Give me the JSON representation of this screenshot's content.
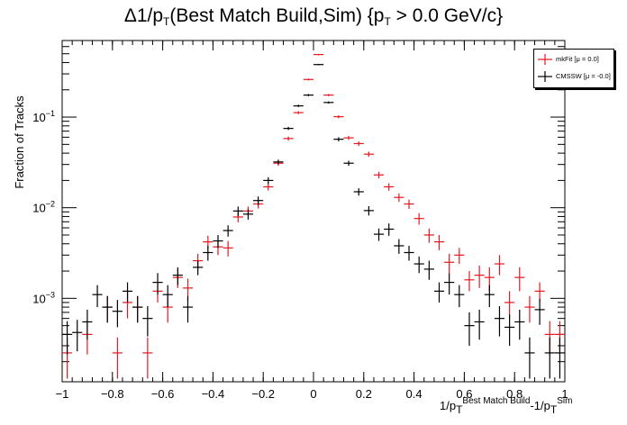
{
  "title": {
    "prefix": "Δ1/p",
    "sub1": "T",
    "mid": "(Best Match Build,Sim) {p",
    "sub2": "T",
    "suffix": " > 0.0 GeV/c}"
  },
  "axes": {
    "ylabel": "Fraction of Tracks",
    "xlabel": {
      "a": "1/p",
      "a_sub": "T",
      "a_sup": "Best Match Build",
      "b": "-1/p",
      "b_sub": "T",
      "b_sup": "Sim"
    }
  },
  "legend": {
    "entries": [
      {
        "label": "mkFit  [μ = 0.0]",
        "color": "#e8171e"
      },
      {
        "label": "CMSSW  [μ = -0.0]",
        "color": "#000000"
      }
    ]
  },
  "chart_data": {
    "type": "scatter",
    "xlim": [
      -1,
      1
    ],
    "ylim": [
      0.00012,
      0.7
    ],
    "yscale": "log",
    "grid": false,
    "legend_position": "top-right",
    "bin_width": 0.04,
    "x_ticks": [
      "−1",
      "−0.8",
      "−0.6",
      "−0.4",
      "−0.2",
      "0",
      "0.2",
      "0.4",
      "0.6",
      "0.8",
      "1"
    ],
    "x_tick_values": [
      -1,
      -0.8,
      -0.6,
      -0.4,
      -0.2,
      0,
      0.2,
      0.4,
      0.6,
      0.8,
      1
    ],
    "y_ticks": [
      {
        "value": 0.001,
        "base": "10",
        "exp": "−3"
      },
      {
        "value": 0.01,
        "base": "10",
        "exp": "−2"
      },
      {
        "value": 0.1,
        "base": "10",
        "exp": "−1"
      }
    ],
    "series": [
      {
        "name": "mkFit  [μ = 0.0]",
        "color": "#e8171e",
        "points": [
          {
            "x": -0.98,
            "y": 0.00025,
            "err": 0.00012
          },
          {
            "x": -0.9,
            "y": 0.0004,
            "err": 0.00016
          },
          {
            "x": -0.82,
            "y": 0.0008,
            "err": 0.00026
          },
          {
            "x": -0.78,
            "y": 0.00025,
            "err": 0.00012
          },
          {
            "x": -0.74,
            "y": 0.0009,
            "err": 0.0003
          },
          {
            "x": -0.7,
            "y": 0.0008,
            "err": 0.00026
          },
          {
            "x": -0.66,
            "y": 0.00025,
            "err": 0.00012
          },
          {
            "x": -0.62,
            "y": 0.0012,
            "err": 0.0003
          },
          {
            "x": -0.58,
            "y": 0.0008,
            "err": 0.00026
          },
          {
            "x": -0.54,
            "y": 0.0017,
            "err": 0.0004
          },
          {
            "x": -0.5,
            "y": 0.0013,
            "err": 0.00035
          },
          {
            "x": -0.46,
            "y": 0.0026,
            "err": 0.0005
          },
          {
            "x": -0.42,
            "y": 0.0042,
            "err": 0.0007
          },
          {
            "x": -0.38,
            "y": 0.0037,
            "err": 0.0007
          },
          {
            "x": -0.34,
            "y": 0.0036,
            "err": 0.0007
          },
          {
            "x": -0.3,
            "y": 0.0079,
            "err": 0.001
          },
          {
            "x": -0.26,
            "y": 0.0092,
            "err": 0.0011
          },
          {
            "x": -0.22,
            "y": 0.011,
            "err": 0.0012
          },
          {
            "x": -0.18,
            "y": 0.017,
            "err": 0.0015
          },
          {
            "x": -0.14,
            "y": 0.031,
            "err": 0.002
          },
          {
            "x": -0.1,
            "y": 0.058,
            "err": 0.003
          },
          {
            "x": -0.06,
            "y": 0.112,
            "err": 0.004
          },
          {
            "x": -0.02,
            "y": 0.26,
            "err": 0.006
          },
          {
            "x": 0.02,
            "y": 0.49,
            "err": 0.008
          },
          {
            "x": 0.06,
            "y": 0.175,
            "err": 0.005
          },
          {
            "x": 0.1,
            "y": 0.101,
            "err": 0.004
          },
          {
            "x": 0.14,
            "y": 0.059,
            "err": 0.003
          },
          {
            "x": 0.18,
            "y": 0.051,
            "err": 0.003
          },
          {
            "x": 0.22,
            "y": 0.039,
            "err": 0.0025
          },
          {
            "x": 0.26,
            "y": 0.023,
            "err": 0.0019
          },
          {
            "x": 0.3,
            "y": 0.017,
            "err": 0.0016
          },
          {
            "x": 0.34,
            "y": 0.013,
            "err": 0.0014
          },
          {
            "x": 0.38,
            "y": 0.011,
            "err": 0.0013
          },
          {
            "x": 0.42,
            "y": 0.0076,
            "err": 0.0011
          },
          {
            "x": 0.46,
            "y": 0.005,
            "err": 0.0009
          },
          {
            "x": 0.5,
            "y": 0.0042,
            "err": 0.0008
          },
          {
            "x": 0.54,
            "y": 0.0025,
            "err": 0.0006
          },
          {
            "x": 0.58,
            "y": 0.003,
            "err": 0.0006
          },
          {
            "x": 0.62,
            "y": 0.0016,
            "err": 0.0004
          },
          {
            "x": 0.66,
            "y": 0.0018,
            "err": 0.0005
          },
          {
            "x": 0.7,
            "y": 0.0017,
            "err": 0.0005
          },
          {
            "x": 0.74,
            "y": 0.0024,
            "err": 0.0006
          },
          {
            "x": 0.78,
            "y": 0.0009,
            "err": 0.0003
          },
          {
            "x": 0.82,
            "y": 0.0017,
            "err": 0.0005
          },
          {
            "x": 0.86,
            "y": 0.0008,
            "err": 0.00026
          },
          {
            "x": 0.9,
            "y": 0.0012,
            "err": 0.0003
          },
          {
            "x": 0.94,
            "y": 0.0004,
            "err": 0.00016
          },
          {
            "x": 0.98,
            "y": 0.0004,
            "err": 0.00016
          }
        ]
      },
      {
        "name": "CMSSW  [μ = -0.0]",
        "color": "#000000",
        "points": [
          {
            "x": -0.98,
            "y": 0.0004,
            "err": 0.00016
          },
          {
            "x": -0.94,
            "y": 0.00042,
            "err": 0.00016
          },
          {
            "x": -0.9,
            "y": 0.00055,
            "err": 0.0002
          },
          {
            "x": -0.86,
            "y": 0.0011,
            "err": 0.0003
          },
          {
            "x": -0.82,
            "y": 0.0008,
            "err": 0.00026
          },
          {
            "x": -0.78,
            "y": 0.00072,
            "err": 0.00024
          },
          {
            "x": -0.74,
            "y": 0.0012,
            "err": 0.0003
          },
          {
            "x": -0.7,
            "y": 0.0008,
            "err": 0.00026
          },
          {
            "x": -0.66,
            "y": 0.0006,
            "err": 0.00022
          },
          {
            "x": -0.62,
            "y": 0.0015,
            "err": 0.0004
          },
          {
            "x": -0.58,
            "y": 0.0011,
            "err": 0.0003
          },
          {
            "x": -0.54,
            "y": 0.0018,
            "err": 0.0004
          },
          {
            "x": -0.5,
            "y": 0.0008,
            "err": 0.00026
          },
          {
            "x": -0.46,
            "y": 0.0022,
            "err": 0.0004
          },
          {
            "x": -0.42,
            "y": 0.0032,
            "err": 0.0006
          },
          {
            "x": -0.38,
            "y": 0.0043,
            "err": 0.0007
          },
          {
            "x": -0.34,
            "y": 0.0056,
            "err": 0.0008
          },
          {
            "x": -0.3,
            "y": 0.0092,
            "err": 0.0011
          },
          {
            "x": -0.26,
            "y": 0.0085,
            "err": 0.0011
          },
          {
            "x": -0.22,
            "y": 0.012,
            "err": 0.0013
          },
          {
            "x": -0.18,
            "y": 0.02,
            "err": 0.0017
          },
          {
            "x": -0.14,
            "y": 0.032,
            "err": 0.002
          },
          {
            "x": -0.1,
            "y": 0.075,
            "err": 0.003
          },
          {
            "x": -0.06,
            "y": 0.133,
            "err": 0.004
          },
          {
            "x": -0.02,
            "y": 0.175,
            "err": 0.005
          },
          {
            "x": 0.02,
            "y": 0.38,
            "err": 0.007
          },
          {
            "x": 0.06,
            "y": 0.145,
            "err": 0.004
          },
          {
            "x": 0.1,
            "y": 0.057,
            "err": 0.003
          },
          {
            "x": 0.14,
            "y": 0.031,
            "err": 0.002
          },
          {
            "x": 0.18,
            "y": 0.015,
            "err": 0.0014
          },
          {
            "x": 0.22,
            "y": 0.0093,
            "err": 0.0011
          },
          {
            "x": 0.26,
            "y": 0.0051,
            "err": 0.0008
          },
          {
            "x": 0.3,
            "y": 0.0058,
            "err": 0.0009
          },
          {
            "x": 0.34,
            "y": 0.0038,
            "err": 0.0007
          },
          {
            "x": 0.38,
            "y": 0.0032,
            "err": 0.0006
          },
          {
            "x": 0.42,
            "y": 0.0024,
            "err": 0.0005
          },
          {
            "x": 0.46,
            "y": 0.0021,
            "err": 0.0005
          },
          {
            "x": 0.5,
            "y": 0.0012,
            "err": 0.0003
          },
          {
            "x": 0.54,
            "y": 0.0015,
            "err": 0.0004
          },
          {
            "x": 0.58,
            "y": 0.0011,
            "err": 0.0003
          },
          {
            "x": 0.62,
            "y": 0.0005,
            "err": 0.0002
          },
          {
            "x": 0.66,
            "y": 0.00055,
            "err": 0.0002
          },
          {
            "x": 0.7,
            "y": 0.0011,
            "err": 0.0003
          },
          {
            "x": 0.74,
            "y": 0.0006,
            "err": 0.00022
          },
          {
            "x": 0.78,
            "y": 0.00048,
            "err": 0.00018
          },
          {
            "x": 0.82,
            "y": 0.00055,
            "err": 0.0002
          },
          {
            "x": 0.86,
            "y": 0.00025,
            "err": 0.00012
          },
          {
            "x": 0.9,
            "y": 0.00075,
            "err": 0.00024
          },
          {
            "x": 0.94,
            "y": 0.00025,
            "err": 0.00012
          },
          {
            "x": 0.98,
            "y": 0.00025,
            "err": 0.00012
          }
        ]
      }
    ]
  }
}
